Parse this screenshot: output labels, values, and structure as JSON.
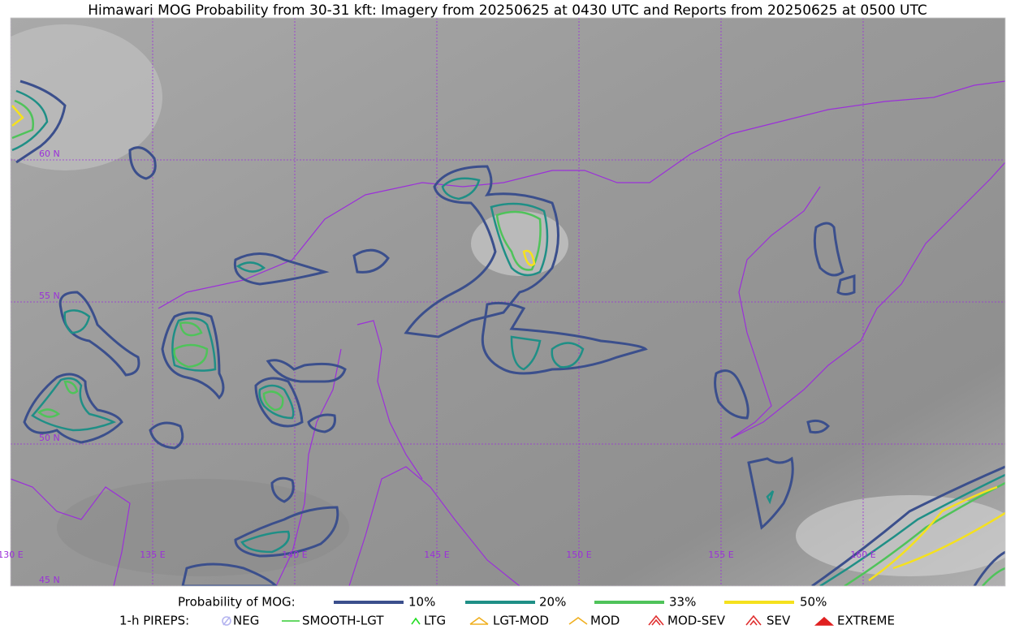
{
  "header": {
    "title": "Himawari MOG Probability from 30-31 kft: Imagery from 20250625 at 0430 UTC and Reports from 20250625 at 0500 UTC"
  },
  "map": {
    "lon_labels": [
      "130 E",
      "135 E",
      "140 E",
      "145 E",
      "150 E",
      "155 E",
      "160 E"
    ],
    "lat_labels": [
      "60 N",
      "55 N",
      "50 N",
      "45 N"
    ],
    "grid_color": "#9b30d9"
  },
  "legend": {
    "probability_title": "Probability of MOG:",
    "probability_items": [
      {
        "label": "10%",
        "color": "#3b4f8c"
      },
      {
        "label": "20%",
        "color": "#1f8f86"
      },
      {
        "label": "33%",
        "color": "#4fc35a"
      },
      {
        "label": "50%",
        "color": "#f5e11e"
      }
    ],
    "pireps_title": "1-h PIREPS:",
    "pireps_items": [
      {
        "label": "NEG",
        "color": "#b5b5f0"
      },
      {
        "label": "SMOOTH-LGT",
        "color": "#33cc33"
      },
      {
        "label": "LTG",
        "color": "#22dd22"
      },
      {
        "label": "LGT-MOD",
        "color": "#f0b020"
      },
      {
        "label": "MOD",
        "color": "#f0b020"
      },
      {
        "label": "MOD-SEV",
        "color": "#e03030"
      },
      {
        "label": "SEV",
        "color": "#e03030"
      },
      {
        "label": "EXTREME",
        "color": "#e02020"
      }
    ]
  }
}
